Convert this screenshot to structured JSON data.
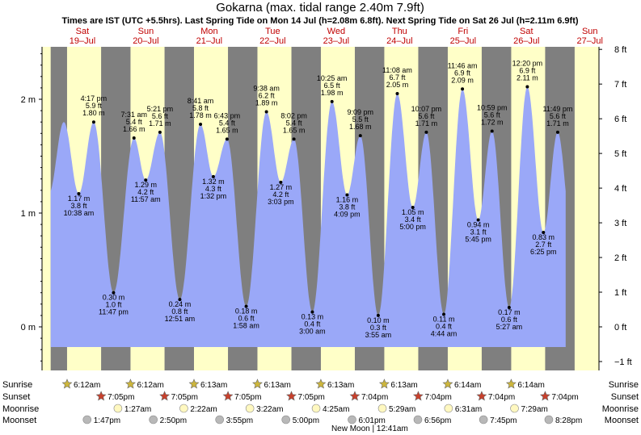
{
  "chart_data": {
    "type": "area",
    "title": "Gokarna (max. tidal range 2.40m 7.9ft)",
    "subtitle": "Times are IST (UTC +5.5hrs). Last Spring Tide on Mon 14 Jul (h=2.08m 6.8ft). Next Spring Tide on Sat 26 Jul (h=2.11m 6.9ft)",
    "ylim_m": [
      -0.35,
      2.5
    ],
    "ylim_ft": [
      -1,
      8
    ],
    "y_ticks_m": [
      "0 m",
      "1 m",
      "2 m"
    ],
    "y_ticks_ft": [
      "−1 ft",
      "0 ft",
      "1 ft",
      "2 ft",
      "3 ft",
      "4 ft",
      "5 ft",
      "6 ft",
      "7 ft",
      "8 ft"
    ],
    "days": [
      {
        "name": "Sat",
        "date": "19–Jul"
      },
      {
        "name": "Sun",
        "date": "20–Jul"
      },
      {
        "name": "Mon",
        "date": "21–Jul"
      },
      {
        "name": "Tue",
        "date": "22–Jul"
      },
      {
        "name": "Wed",
        "date": "23–Jul"
      },
      {
        "name": "Thu",
        "date": "24–Jul"
      },
      {
        "name": "Fri",
        "date": "25–Jul"
      },
      {
        "name": "Sat",
        "date": "26–Jul"
      },
      {
        "name": "Sun",
        "date": "27–Jul"
      }
    ],
    "tides": [
      {
        "type": "low",
        "time": "10:38 am",
        "m": "1.17 m",
        "ft": "3.8 ft",
        "h": 1.17,
        "t": 10.63
      },
      {
        "type": "high",
        "time": "4:17 pm",
        "m": "1.80 m",
        "ft": "5.9 ft",
        "h": 1.8,
        "t": 16.28
      },
      {
        "type": "low",
        "time": "11:47 pm",
        "m": "0.30 m",
        "ft": "1.0 ft",
        "h": 0.3,
        "t": 23.78
      },
      {
        "type": "high",
        "time": "7:31 am",
        "m": "1.66 m",
        "ft": "5.4 ft",
        "h": 1.66,
        "t": 31.52
      },
      {
        "type": "low",
        "time": "11:57 am",
        "m": "1.29 m",
        "ft": "4.2 ft",
        "h": 1.29,
        "t": 35.95
      },
      {
        "type": "high",
        "time": "5:21 pm",
        "m": "1.71 m",
        "ft": "5.6 ft",
        "h": 1.71,
        "t": 41.35
      },
      {
        "type": "low",
        "time": "12:51 am",
        "m": "0.24 m",
        "ft": "0.8 ft",
        "h": 0.24,
        "t": 48.85
      },
      {
        "type": "high",
        "time": "8:41 am",
        "m": "1.78 m",
        "ft": "5.8 ft",
        "h": 1.78,
        "t": 56.68
      },
      {
        "type": "low",
        "time": "1:32 pm",
        "m": "1.32 m",
        "ft": "4.3 ft",
        "h": 1.32,
        "t": 61.53
      },
      {
        "type": "high",
        "time": "6:43 pm",
        "m": "1.65 m",
        "ft": "5.4 ft",
        "h": 1.65,
        "t": 66.72
      },
      {
        "type": "low",
        "time": "1:58 am",
        "m": "0.18 m",
        "ft": "0.6 ft",
        "h": 0.18,
        "t": 73.97
      },
      {
        "type": "high",
        "time": "9:38 am",
        "m": "1.89 m",
        "ft": "6.2 ft",
        "h": 1.89,
        "t": 81.63
      },
      {
        "type": "low",
        "time": "3:03 pm",
        "m": "1.27 m",
        "ft": "4.2 ft",
        "h": 1.27,
        "t": 87.05
      },
      {
        "type": "high",
        "time": "8:02 pm",
        "m": "1.65 m",
        "ft": "5.4 ft",
        "h": 1.65,
        "t": 92.03
      },
      {
        "type": "low",
        "time": "3:00 am",
        "m": "0.13 m",
        "ft": "0.4 ft",
        "h": 0.13,
        "t": 99.0
      },
      {
        "type": "high",
        "time": "10:25 am",
        "m": "1.98 m",
        "ft": "6.5 ft",
        "h": 1.98,
        "t": 106.42
      },
      {
        "type": "low",
        "time": "4:09 pm",
        "m": "1.16 m",
        "ft": "3.8 ft",
        "h": 1.16,
        "t": 112.15
      },
      {
        "type": "high",
        "time": "9:09 pm",
        "m": "1.68 m",
        "ft": "5.5 ft",
        "h": 1.68,
        "t": 117.15
      },
      {
        "type": "low",
        "time": "3:55 am",
        "m": "0.10 m",
        "ft": "0.3 ft",
        "h": 0.1,
        "t": 123.92
      },
      {
        "type": "high",
        "time": "11:08 am",
        "m": "2.05 m",
        "ft": "6.7 ft",
        "h": 2.05,
        "t": 131.13
      },
      {
        "type": "low",
        "time": "5:00 pm",
        "m": "1.05 m",
        "ft": "3.4 ft",
        "h": 1.05,
        "t": 137.0
      },
      {
        "type": "high",
        "time": "10:07 pm",
        "m": "1.71 m",
        "ft": "5.6 ft",
        "h": 1.71,
        "t": 142.12
      },
      {
        "type": "low",
        "time": "4:44 am",
        "m": "0.11 m",
        "ft": "0.4 ft",
        "h": 0.11,
        "t": 148.73
      },
      {
        "type": "high",
        "time": "11:46 am",
        "m": "2.09 m",
        "ft": "6.9 ft",
        "h": 2.09,
        "t": 155.77
      },
      {
        "type": "low",
        "time": "5:45 pm",
        "m": "0.94 m",
        "ft": "3.1 ft",
        "h": 0.94,
        "t": 161.75
      },
      {
        "type": "high",
        "time": "10:59 pm",
        "m": "1.72 m",
        "ft": "5.6 ft",
        "h": 1.72,
        "t": 166.98
      },
      {
        "type": "low",
        "time": "5:27 am",
        "m": "0.17 m",
        "ft": "0.6 ft",
        "h": 0.17,
        "t": 173.45
      },
      {
        "type": "high",
        "time": "12:20 pm",
        "m": "2.11 m",
        "ft": "6.9 ft",
        "h": 2.11,
        "t": 180.33
      },
      {
        "type": "low",
        "time": "6:25 pm",
        "m": "0.83 m",
        "ft": "2.7 ft",
        "h": 0.83,
        "t": 186.42
      },
      {
        "type": "high",
        "time": "11:49 pm",
        "m": "1.71 m",
        "ft": "5.6 ft",
        "h": 1.71,
        "t": 191.82
      }
    ],
    "night_bands": [
      {
        "start": 0,
        "end": 6.2
      },
      {
        "start": 19.08,
        "end": 30.2
      },
      {
        "start": 43.08,
        "end": 54.22
      },
      {
        "start": 67.08,
        "end": 78.22
      },
      {
        "start": 91.08,
        "end": 102.22
      },
      {
        "start": 115.07,
        "end": 126.22
      },
      {
        "start": 139.07,
        "end": 150.23
      },
      {
        "start": 163.07,
        "end": 174.23
      },
      {
        "start": 187.07,
        "end": 198.23
      }
    ],
    "rows": {
      "sunrise_label": "Sunrise",
      "sunset_label": "Sunset",
      "moonrise_label": "Moonrise",
      "moonset_label": "Moonset",
      "sunrise": [
        "6:12am",
        "6:12am",
        "6:13am",
        "6:13am",
        "6:13am",
        "6:13am",
        "6:14am",
        "6:14am"
      ],
      "sunset": [
        "7:05pm",
        "7:05pm",
        "7:05pm",
        "7:05pm",
        "7:04pm",
        "7:04pm",
        "7:04pm",
        "7:04pm"
      ],
      "moonrise": [
        "1:27am",
        "2:22am",
        "3:22am",
        "4:25am",
        "5:29am",
        "6:31am",
        "7:29am"
      ],
      "moonset": [
        "1:47pm",
        "2:50pm",
        "3:55pm",
        "5:00pm",
        "6:01pm",
        "6:56pm",
        "7:45pm",
        "8:28pm"
      ],
      "new_moon": "New Moon | 12:41am"
    },
    "colors": {
      "water": "#9aa8f8",
      "day": "#ffffc8",
      "night": "#7f7f7f",
      "sun_icon": "#cdb63c",
      "sunset_icon": "#c8402c",
      "moon_rise": "#fff8c0",
      "moon_set": "#b8b8b8",
      "day_label": "#c00000"
    }
  }
}
